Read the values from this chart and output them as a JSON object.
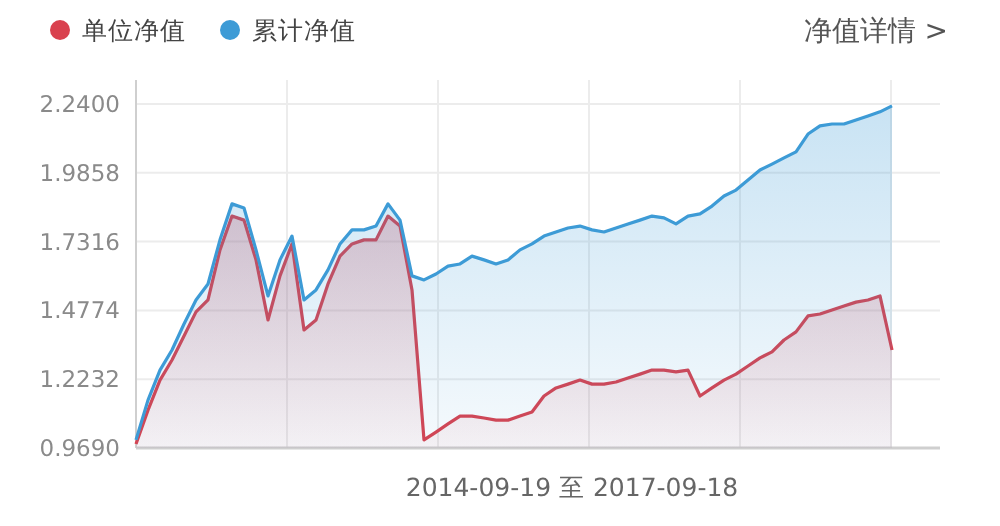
{
  "chart_data": {
    "type": "area",
    "xlabel": "2014-09-19 至 2017-09-18",
    "annotations": [
      "净值详情 >"
    ],
    "categories": [
      null,
      null,
      null,
      null,
      null,
      null,
      null,
      null,
      null,
      null,
      null,
      null,
      null,
      null,
      null,
      null,
      null,
      null,
      null,
      null,
      null,
      null,
      null,
      null,
      null,
      null,
      null,
      null,
      null,
      null,
      null,
      null,
      null,
      null,
      null,
      null,
      null,
      null,
      null,
      null,
      null,
      null,
      null,
      null,
      null,
      null,
      null,
      null,
      null,
      null,
      null,
      null,
      null,
      null,
      null,
      null,
      null,
      null,
      null,
      null,
      null,
      null,
      null,
      null
    ],
    "ylim": [
      0.969,
      2.24
    ],
    "yticks": [
      {
        "value": 0.969,
        "label": "0.9690"
      },
      {
        "value": 1.2232,
        "label": "1.2232"
      },
      {
        "value": 1.4774,
        "label": "1.4774"
      },
      {
        "value": 1.7316,
        "label": "1.7316"
      },
      {
        "value": 1.9858,
        "label": "1.9858"
      },
      {
        "value": 2.24,
        "label": "2.2400"
      }
    ],
    "grid": true,
    "legend": "top left",
    "series": [
      {
        "name": "单位净值",
        "color": "#d9414e",
        "values": [
          0.984,
          1.109,
          1.22,
          1.294,
          1.383,
          1.472,
          1.516,
          1.701,
          1.826,
          1.811,
          1.664,
          1.442,
          1.605,
          1.723,
          1.405,
          1.442,
          1.575,
          1.678,
          1.723,
          1.738,
          1.738,
          1.826,
          1.789,
          1.553,
          0.999,
          1.028,
          1.058,
          1.087,
          1.087,
          1.08,
          1.072,
          1.072,
          1.087,
          1.102,
          1.161,
          1.191,
          1.205,
          1.22,
          1.205,
          1.205,
          1.213,
          1.228,
          1.242,
          1.257,
          1.257,
          1.25,
          1.257,
          1.161,
          1.191,
          1.22,
          1.242,
          1.272,
          1.302,
          1.324,
          1.368,
          1.398,
          1.457,
          1.464,
          1.479,
          1.494,
          1.508,
          1.516,
          1.531,
          1.331
        ]
      },
      {
        "name": "累计净值",
        "color": "#3d9bd6",
        "values": [
          0.999,
          1.146,
          1.257,
          1.331,
          1.427,
          1.516,
          1.575,
          1.738,
          1.871,
          1.856,
          1.701,
          1.531,
          1.664,
          1.752,
          1.516,
          1.553,
          1.627,
          1.723,
          1.775,
          1.775,
          1.789,
          1.871,
          1.811,
          1.605,
          1.59,
          1.612,
          1.641,
          1.649,
          1.678,
          1.664,
          1.649,
          1.664,
          1.701,
          1.723,
          1.752,
          1.767,
          1.782,
          1.789,
          1.775,
          1.767,
          1.782,
          1.797,
          1.811,
          1.826,
          1.819,
          1.797,
          1.826,
          1.834,
          1.863,
          1.9,
          1.922,
          1.959,
          1.996,
          2.018,
          2.041,
          2.063,
          2.129,
          2.159,
          2.166,
          2.166,
          2.181,
          2.196,
          2.211,
          2.233
        ]
      }
    ]
  }
}
